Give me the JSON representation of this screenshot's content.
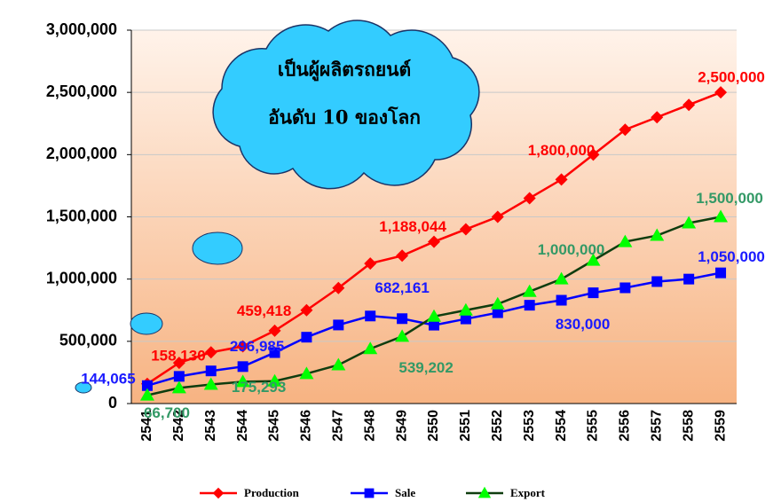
{
  "chart_data": {
    "type": "line",
    "annotation": [
      "เป็นผู้ผลิตรถยนต์",
      "อันดับ 10 ของโลก"
    ],
    "categories": [
      "2541",
      "2542",
      "2543",
      "2544",
      "2545",
      "2546",
      "2547",
      "2548",
      "2549",
      "2550",
      "2551",
      "2552",
      "2553",
      "2554",
      "2555",
      "2556",
      "2557",
      "2558",
      "2559"
    ],
    "series": [
      {
        "name": "Production",
        "color": "#ff0000",
        "line_color": "#ff0000",
        "label_color": "#ff0000",
        "marker": "diamond",
        "values": [
          158130,
          327233,
          411721,
          459418,
          584951,
          750000,
          928081,
          1125316,
          1188044,
          1300000,
          1400000,
          1500000,
          1650000,
          1800000,
          2000000,
          2200000,
          2300000,
          2400000,
          2500000
        ],
        "value_labels": [
          "158,130",
          null,
          null,
          "459,418",
          null,
          null,
          null,
          null,
          "1,188,044",
          null,
          null,
          null,
          null,
          "1,800,000",
          null,
          null,
          null,
          null,
          "2,500,000"
        ]
      },
      {
        "name": "Sale",
        "color": "#0000ff",
        "line_color": "#0000ff",
        "label_color": "#1a1aff",
        "marker": "square",
        "values": [
          144065,
          218330,
          262189,
          296985,
          409362,
          533176,
          631251,
          703432,
          682161,
          630000,
          680000,
          730000,
          790000,
          830000,
          890000,
          930000,
          980000,
          1000000,
          1050000
        ],
        "value_labels": [
          "144,065",
          null,
          null,
          "296,985",
          null,
          null,
          null,
          null,
          "682,161",
          null,
          null,
          null,
          null,
          "830,000",
          null,
          null,
          null,
          null,
          "1,050,000"
        ]
      },
      {
        "name": "Export",
        "color": "#00ff00",
        "line_color": "#0f3d0f",
        "label_color": "#339966",
        "marker": "triangle",
        "values": [
          66700,
          125702,
          152835,
          175293,
          180000,
          240000,
          310000,
          440000,
          539202,
          700000,
          750000,
          800000,
          900000,
          1000000,
          1150000,
          1300000,
          1350000,
          1450000,
          1500000
        ],
        "value_labels": [
          "66,700",
          null,
          null,
          "175,293",
          null,
          null,
          null,
          null,
          "539,202",
          null,
          null,
          null,
          null,
          "1,000,000",
          null,
          null,
          null,
          null,
          "1,500,000"
        ]
      }
    ],
    "ylim": [
      0,
      3000000
    ],
    "yticks": [
      0,
      {
        "value": 500000,
        "label": "500,000"
      },
      {
        "value": 1000000,
        "label": "1,000,000"
      },
      {
        "value": 1500000,
        "label": "1,500,000"
      },
      {
        "value": 2000000,
        "label": "2,000,000"
      },
      {
        "value": 2500000,
        "label": "2,500,000"
      },
      {
        "value": 3000000,
        "label": "3,000,000"
      }
    ],
    "grid": true,
    "legend": "bottom"
  }
}
